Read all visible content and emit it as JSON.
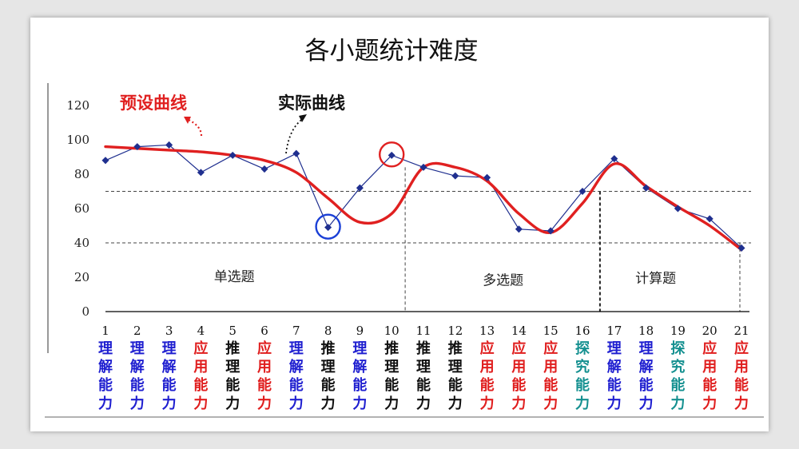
{
  "chart_data": {
    "type": "line",
    "title": "各小题统计难度",
    "ylim": [
      0,
      120
    ],
    "yticks": [
      0,
      20,
      40,
      60,
      80,
      100,
      120
    ],
    "x": [
      1,
      2,
      3,
      4,
      5,
      6,
      7,
      8,
      9,
      10,
      11,
      12,
      13,
      14,
      15,
      16,
      17,
      18,
      19,
      20,
      21
    ],
    "series": [
      {
        "name": "实际曲线",
        "color": "#1f2f8f",
        "values": [
          88,
          96,
          97,
          81,
          91,
          83,
          92,
          49,
          72,
          91,
          84,
          79,
          78,
          48,
          47,
          70,
          89,
          72,
          60,
          54,
          37
        ]
      },
      {
        "name": "预设曲线",
        "color": "#e02020",
        "values": [
          96,
          95,
          94,
          93,
          91,
          88,
          81,
          66,
          52,
          57,
          84,
          84,
          76,
          57,
          46,
          63,
          86,
          73,
          61,
          50,
          36
        ]
      }
    ],
    "sections": [
      {
        "label": "单选题",
        "from": 1,
        "to": 10
      },
      {
        "label": "多选题",
        "from": 11,
        "to": 16
      },
      {
        "label": "计算题",
        "from": 17,
        "to": 21
      }
    ],
    "reference_lines": [
      40,
      70
    ],
    "highlight": [
      {
        "x": 8,
        "y": 49,
        "color": "#1a3fd6"
      },
      {
        "x": 10,
        "y": 91,
        "color": "#e02020"
      }
    ],
    "category_labels": [
      {
        "text": "理解能力",
        "color": "#1f1fd0"
      },
      {
        "text": "理解能力",
        "color": "#1f1fd0"
      },
      {
        "text": "理解能力",
        "color": "#1f1fd0"
      },
      {
        "text": "应用能力",
        "color": "#e01e1e"
      },
      {
        "text": "推理能力",
        "color": "#111111"
      },
      {
        "text": "应用能力",
        "color": "#e01e1e"
      },
      {
        "text": "理解能力",
        "color": "#1f1fd0"
      },
      {
        "text": "推理能力",
        "color": "#111111"
      },
      {
        "text": "理解能力",
        "color": "#1f1fd0"
      },
      {
        "text": "推理能力",
        "color": "#111111"
      },
      {
        "text": "推理能力",
        "color": "#111111"
      },
      {
        "text": "推理能力",
        "color": "#111111"
      },
      {
        "text": "应用能力",
        "color": "#e01e1e"
      },
      {
        "text": "应用能力",
        "color": "#e01e1e"
      },
      {
        "text": "应用能力",
        "color": "#e01e1e"
      },
      {
        "text": "探究能力",
        "color": "#149090"
      },
      {
        "text": "理解能力",
        "color": "#1f1fd0"
      },
      {
        "text": "理解能力",
        "color": "#1f1fd0"
      },
      {
        "text": "探究能力",
        "color": "#149090"
      },
      {
        "text": "应用能力",
        "color": "#e01e1e"
      },
      {
        "text": "应用能力",
        "color": "#e01e1e"
      }
    ]
  }
}
